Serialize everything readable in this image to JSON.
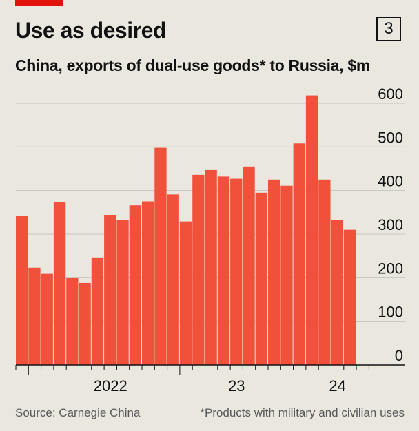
{
  "header": {
    "title": "Use as desired",
    "chart_number": "3",
    "subtitle": "China, exports of dual-use goods* to Russia, $m"
  },
  "footer": {
    "source": "Source: Carnegie China",
    "note": "*Products with military and civilian uses"
  },
  "colors": {
    "bar": "#f1513a",
    "grid": "#c6c6c0",
    "accent": "#e3120b",
    "background": "#e9e7de"
  },
  "chart_data": {
    "type": "bar",
    "title": "China, exports of dual-use goods* to Russia, $m",
    "ylim": [
      0,
      600
    ],
    "yticks": [
      0,
      100,
      200,
      300,
      400,
      500,
      600
    ],
    "ytick_labels": [
      "0",
      "100",
      "200",
      "300",
      "400",
      "500",
      "600"
    ],
    "categories": [
      "2021-12",
      "2022-01",
      "2022-02",
      "2022-03",
      "2022-04",
      "2022-05",
      "2022-06",
      "2022-07",
      "2022-08",
      "2022-09",
      "2022-10",
      "2022-11",
      "2022-12",
      "2023-01",
      "2023-02",
      "2023-03",
      "2023-04",
      "2023-05",
      "2023-06",
      "2023-07",
      "2023-08",
      "2023-09",
      "2023-10",
      "2023-11",
      "2023-12",
      "2024-01",
      "2024-02",
      "2024-03"
    ],
    "values": [
      341,
      223,
      209,
      373,
      199,
      188,
      245,
      344,
      333,
      366,
      375,
      498,
      391,
      329,
      436,
      447,
      432,
      427,
      455,
      395,
      425,
      411,
      508,
      618,
      425,
      332,
      310,
      0
    ],
    "xtick_labels": [
      {
        "label": "2022",
        "category": "2022-07"
      },
      {
        "label": "23",
        "category": "2023-05"
      },
      {
        "label": "24",
        "category": "2024-01"
      }
    ],
    "grid": true,
    "y_axis_position": "right"
  }
}
